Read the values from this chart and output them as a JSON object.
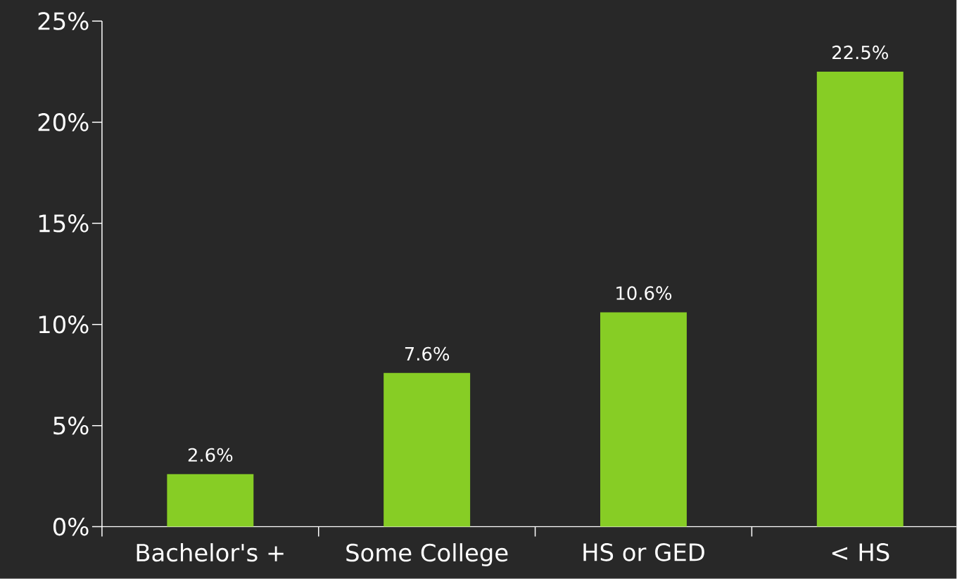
{
  "chart_data": {
    "type": "bar",
    "categories": [
      "Bachelor's +",
      "Some College",
      "HS or GED",
      "< HS"
    ],
    "values": [
      2.6,
      7.6,
      10.6,
      22.5
    ],
    "value_labels": [
      "2.6%",
      "7.6%",
      "10.6%",
      "22.5%"
    ],
    "color": "#87cd25",
    "ylim": [
      0,
      25
    ],
    "yticks": [
      {
        "value": 0,
        "label": "0%"
      },
      {
        "value": 5,
        "label": "5%"
      },
      {
        "value": 10,
        "label": "10%"
      },
      {
        "value": 15,
        "label": "15%"
      },
      {
        "value": 20,
        "label": "20%"
      },
      {
        "value": 25,
        "label": "25%"
      }
    ],
    "grid": false
  }
}
